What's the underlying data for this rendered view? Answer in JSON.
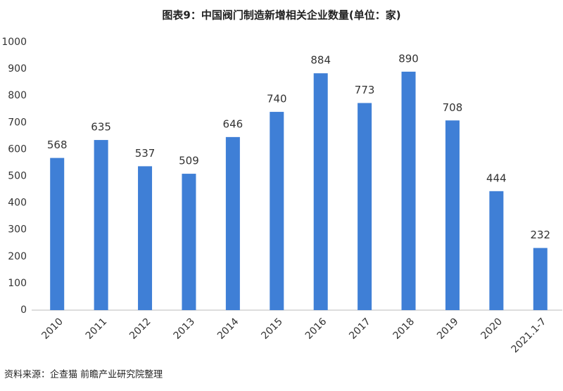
{
  "chart_data": {
    "type": "bar",
    "title": "图表9：中国阀门制造新增相关企业数量(单位：家)",
    "source": "资料来源：企查猫 前瞻产业研究院整理",
    "categories": [
      "2010",
      "2011",
      "2012",
      "2013",
      "2014",
      "2015",
      "2016",
      "2017",
      "2018",
      "2019",
      "2020",
      "2021.1-7"
    ],
    "values": [
      568,
      635,
      537,
      509,
      646,
      740,
      884,
      773,
      890,
      708,
      444,
      232
    ],
    "color": "#3f7fd6",
    "ylim": [
      0,
      1000
    ],
    "yticks": [
      0,
      100,
      200,
      300,
      400,
      500,
      600,
      700,
      800,
      900,
      1000
    ],
    "grid": false
  }
}
